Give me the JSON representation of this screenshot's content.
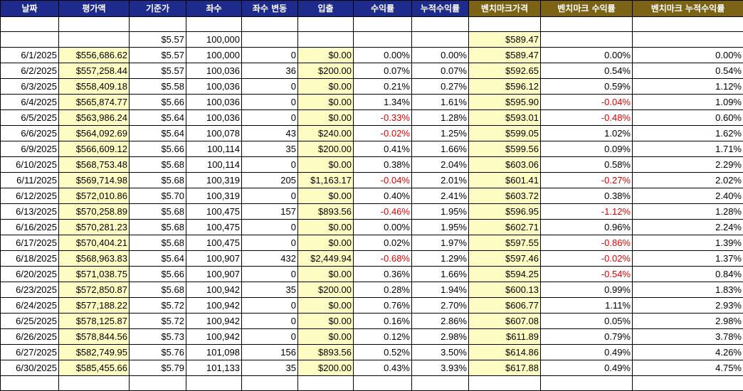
{
  "colors": {
    "header_blue": "#1f2b8c",
    "header_gold": "#7b6214",
    "highlight": "#fdfdc3",
    "negative": "#e00000"
  },
  "headers": [
    "날짜",
    "평가액",
    "기준가",
    "좌수",
    "좌수 변동",
    "입출",
    "수익률",
    "누적수익률",
    "벤치마크가격",
    "벤치마크 수익률",
    "벤치마크 누적수익률"
  ],
  "header_styles": [
    "blue",
    "blue",
    "blue",
    "blue",
    "blue",
    "blue",
    "blue",
    "blue",
    "gold",
    "gold",
    "gold"
  ],
  "rows": [
    [
      "",
      "",
      "",
      "",
      "",
      "",
      "",
      "",
      "",
      "",
      ""
    ],
    [
      "",
      "",
      "$5.57",
      "100,000",
      "",
      "",
      "",
      "",
      "$589.47",
      "",
      ""
    ],
    [
      "6/1/2025",
      "$556,686.62",
      "$5.57",
      "100,000",
      "0",
      "$0.00",
      "0.00%",
      "0.00%",
      "$589.47",
      "0.00%",
      "0.00%"
    ],
    [
      "6/2/2025",
      "$557,258.44",
      "$5.57",
      "100,036",
      "36",
      "$200.00",
      "0.07%",
      "0.07%",
      "$592.65",
      "0.54%",
      "0.54%"
    ],
    [
      "6/3/2025",
      "$558,409.18",
      "$5.58",
      "100,036",
      "0",
      "$0.00",
      "0.21%",
      "0.27%",
      "$596.12",
      "0.59%",
      "1.12%"
    ],
    [
      "6/4/2025",
      "$565,874.77",
      "$5.66",
      "100,036",
      "0",
      "$0.00",
      "1.34%",
      "1.61%",
      "$595.90",
      "-0.04%",
      "1.09%"
    ],
    [
      "6/5/2025",
      "$563,986.24",
      "$5.64",
      "100,036",
      "0",
      "$0.00",
      "-0.33%",
      "1.28%",
      "$593.01",
      "-0.48%",
      "0.60%"
    ],
    [
      "6/6/2025",
      "$564,092.69",
      "$5.64",
      "100,078",
      "43",
      "$240.00",
      "-0.02%",
      "1.25%",
      "$599.05",
      "1.02%",
      "1.62%"
    ],
    [
      "6/9/2025",
      "$566,609.12",
      "$5.66",
      "100,114",
      "35",
      "$200.00",
      "0.41%",
      "1.66%",
      "$599.56",
      "0.09%",
      "1.71%"
    ],
    [
      "6/10/2025",
      "$568,753.48",
      "$5.68",
      "100,114",
      "0",
      "$0.00",
      "0.38%",
      "2.04%",
      "$603.06",
      "0.58%",
      "2.29%"
    ],
    [
      "6/11/2025",
      "$569,714.98",
      "$5.68",
      "100,319",
      "205",
      "$1,163.17",
      "-0.04%",
      "2.01%",
      "$601.41",
      "-0.27%",
      "2.02%"
    ],
    [
      "6/12/2025",
      "$572,010.86",
      "$5.70",
      "100,319",
      "0",
      "$0.00",
      "0.40%",
      "2.41%",
      "$603.72",
      "0.38%",
      "2.40%"
    ],
    [
      "6/13/2025",
      "$570,258.89",
      "$5.68",
      "100,475",
      "157",
      "$893.56",
      "-0.46%",
      "1.95%",
      "$596.95",
      "-1.12%",
      "1.28%"
    ],
    [
      "6/16/2025",
      "$570,281.23",
      "$5.68",
      "100,475",
      "0",
      "$0.00",
      "0.00%",
      "1.95%",
      "$602.71",
      "0.96%",
      "2.24%"
    ],
    [
      "6/17/2025",
      "$570,404.21",
      "$5.68",
      "100,475",
      "0",
      "$0.00",
      "0.02%",
      "1.97%",
      "$597.55",
      "-0.86%",
      "1.39%"
    ],
    [
      "6/18/2025",
      "$568,963.83",
      "$5.64",
      "100,907",
      "432",
      "$2,449.94",
      "-0.68%",
      "1.29%",
      "$597.46",
      "-0.02%",
      "1.37%"
    ],
    [
      "6/20/2025",
      "$571,038.75",
      "$5.66",
      "100,907",
      "0",
      "$0.00",
      "0.36%",
      "1.66%",
      "$594.25",
      "-0.54%",
      "0.84%"
    ],
    [
      "6/23/2025",
      "$572,850.87",
      "$5.68",
      "100,942",
      "35",
      "$200.00",
      "0.28%",
      "1.94%",
      "$600.13",
      "0.99%",
      "1.83%"
    ],
    [
      "6/24/2025",
      "$577,188.22",
      "$5.72",
      "100,942",
      "0",
      "$0.00",
      "0.76%",
      "2.70%",
      "$606.77",
      "1.11%",
      "2.93%"
    ],
    [
      "6/25/2025",
      "$578,125.87",
      "$5.72",
      "100,942",
      "0",
      "$0.00",
      "0.16%",
      "2.86%",
      "$607.08",
      "0.05%",
      "2.98%"
    ],
    [
      "6/26/2025",
      "$578,844.56",
      "$5.73",
      "100,942",
      "0",
      "$0.00",
      "0.12%",
      "2.98%",
      "$611.89",
      "0.79%",
      "3.78%"
    ],
    [
      "6/27/2025",
      "$582,749.95",
      "$5.76",
      "101,098",
      "156",
      "$893.56",
      "0.52%",
      "3.50%",
      "$614.86",
      "0.49%",
      "4.26%"
    ],
    [
      "6/30/2025",
      "$585,455.66",
      "$5.79",
      "101,133",
      "35",
      "$200.00",
      "0.43%",
      "3.93%",
      "$617.88",
      "0.49%",
      "4.75%"
    ],
    [
      "",
      "",
      "",
      "",
      "",
      "",
      "",
      "",
      "",
      "",
      ""
    ]
  ]
}
